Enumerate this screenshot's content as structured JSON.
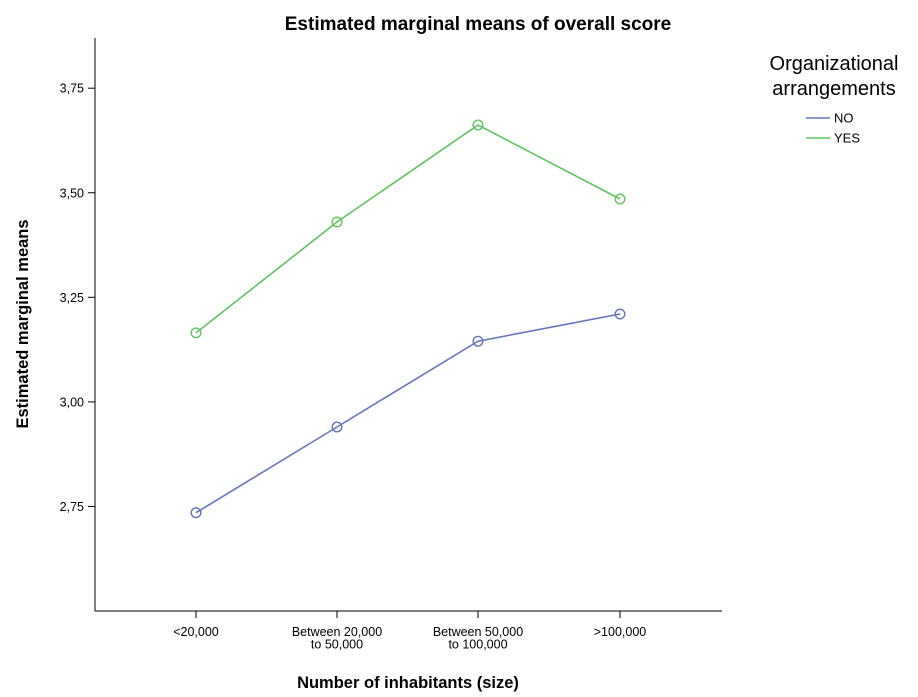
{
  "chart_data": {
    "type": "line",
    "title": "Estimated marginal means of overall score",
    "xlabel": "Number of inhabitants (size)",
    "ylabel": "Estimated marginal means",
    "categories": [
      [
        "<20,000"
      ],
      [
        "Between 20,000",
        "to 50,000"
      ],
      [
        "Between 50,000",
        "to 100,000"
      ],
      [
        ">100,000"
      ]
    ],
    "ylim": [
      2.5,
      3.87
    ],
    "yticks": [
      "2,75",
      "3,00",
      "3,25",
      "3,50",
      "3,75"
    ],
    "ytick_values": [
      2.75,
      3.0,
      3.25,
      3.5,
      3.75
    ],
    "grid": false,
    "legend": {
      "title_lines": [
        "Organizational",
        "arrangements"
      ],
      "placement": "top-right"
    },
    "series": [
      {
        "name": "NO",
        "color": "#6474bd",
        "values": [
          2.735,
          2.94,
          3.145,
          3.21
        ]
      },
      {
        "name": "YES",
        "color": "#5fc35f",
        "values": [
          3.165,
          3.43,
          3.662,
          3.485
        ]
      }
    ]
  }
}
